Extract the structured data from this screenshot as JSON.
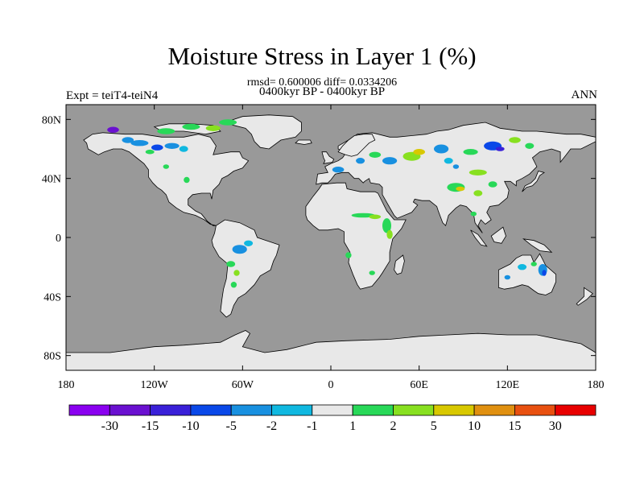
{
  "title": "Moisture Stress in Layer 1 (%)",
  "subtitle_stats": "rmsd= 0.600006 diff= 0.0334206",
  "subtitle_period": "0400kyr BP - 0400kyr BP",
  "left_label": "Expt = teiT4-teiN4",
  "right_label": "ANN",
  "lat_ticks": [
    {
      "value": 80,
      "label": "80N"
    },
    {
      "value": 40,
      "label": "40N"
    },
    {
      "value": 0,
      "label": "0"
    },
    {
      "value": -40,
      "label": "40S"
    },
    {
      "value": -80,
      "label": "80S"
    }
  ],
  "lon_ticks": [
    {
      "value": -180,
      "label": "180"
    },
    {
      "value": -120,
      "label": "120W"
    },
    {
      "value": -60,
      "label": "60W"
    },
    {
      "value": 0,
      "label": "0"
    },
    {
      "value": 60,
      "label": "60E"
    },
    {
      "value": 120,
      "label": "120E"
    },
    {
      "value": 180,
      "label": "180"
    }
  ],
  "lat_range": [
    -90,
    90
  ],
  "lon_range": [
    -180,
    180
  ],
  "colors": {
    "ocean": "#999999",
    "land_neutral": "#e8e8e8"
  },
  "colorbar": {
    "colors": [
      "#8a00f0",
      "#6a10d0",
      "#3a20d8",
      "#0a48e8",
      "#1890e0",
      "#10b8e0",
      "#e8e8e8",
      "#28d858",
      "#88e020",
      "#d8c800",
      "#e09010",
      "#e85010",
      "#e80000"
    ],
    "labels": [
      "-30",
      "-15",
      "-10",
      "-5",
      "-2",
      "-1",
      "1",
      "2",
      "5",
      "10",
      "15",
      "30"
    ]
  },
  "anomalies": [
    {
      "lon": -148,
      "lat": 73,
      "rx": 4,
      "ry": 2,
      "class": 1
    },
    {
      "lon": -138,
      "lat": 66,
      "rx": 4,
      "ry": 2,
      "class": 4
    },
    {
      "lon": -130,
      "lat": 64,
      "rx": 6,
      "ry": 2,
      "class": 4
    },
    {
      "lon": -118,
      "lat": 61,
      "rx": 4,
      "ry": 2,
      "class": 3
    },
    {
      "lon": -108,
      "lat": 62,
      "rx": 5,
      "ry": 2,
      "class": 4
    },
    {
      "lon": -100,
      "lat": 60,
      "rx": 3,
      "ry": 2,
      "class": 5
    },
    {
      "lon": -112,
      "lat": 72,
      "rx": 6,
      "ry": 2,
      "class": 7
    },
    {
      "lon": -95,
      "lat": 75,
      "rx": 6,
      "ry": 2,
      "class": 7
    },
    {
      "lon": -80,
      "lat": 74,
      "rx": 5,
      "ry": 2,
      "class": 8
    },
    {
      "lon": -70,
      "lat": 78,
      "rx": 6,
      "ry": 2,
      "class": 7
    },
    {
      "lon": -123,
      "lat": 58,
      "rx": 3,
      "ry": 1.5,
      "class": 7
    },
    {
      "lon": -112,
      "lat": 48,
      "rx": 2,
      "ry": 1.5,
      "class": 7
    },
    {
      "lon": -98,
      "lat": 39,
      "rx": 2,
      "ry": 2,
      "class": 7
    },
    {
      "lon": -62,
      "lat": -8,
      "rx": 5,
      "ry": 3,
      "class": 4
    },
    {
      "lon": -56,
      "lat": -4,
      "rx": 3,
      "ry": 2,
      "class": 5
    },
    {
      "lon": -68,
      "lat": -18,
      "rx": 3,
      "ry": 2,
      "class": 7
    },
    {
      "lon": -64,
      "lat": -24,
      "rx": 2,
      "ry": 2,
      "class": 8
    },
    {
      "lon": -66,
      "lat": -32,
      "rx": 2,
      "ry": 2,
      "class": 7
    },
    {
      "lon": 22,
      "lat": 15,
      "rx": 8,
      "ry": 1.5,
      "class": 7
    },
    {
      "lon": 30,
      "lat": 14,
      "rx": 4,
      "ry": 1.5,
      "class": 8
    },
    {
      "lon": 38,
      "lat": 8,
      "rx": 3,
      "ry": 5,
      "class": 7
    },
    {
      "lon": 40,
      "lat": 2,
      "rx": 2,
      "ry": 3,
      "class": 8
    },
    {
      "lon": 12,
      "lat": -12,
      "rx": 2,
      "ry": 2,
      "class": 7
    },
    {
      "lon": 28,
      "lat": -24,
      "rx": 2,
      "ry": 1.5,
      "class": 7
    },
    {
      "lon": 5,
      "lat": 46,
      "rx": 4,
      "ry": 2,
      "class": 4
    },
    {
      "lon": 20,
      "lat": 52,
      "rx": 3,
      "ry": 2,
      "class": 4
    },
    {
      "lon": 30,
      "lat": 56,
      "rx": 4,
      "ry": 2,
      "class": 7
    },
    {
      "lon": 40,
      "lat": 52,
      "rx": 5,
      "ry": 2.5,
      "class": 4
    },
    {
      "lon": 55,
      "lat": 55,
      "rx": 6,
      "ry": 3,
      "class": 8
    },
    {
      "lon": 60,
      "lat": 58,
      "rx": 4,
      "ry": 2,
      "class": 9
    },
    {
      "lon": 75,
      "lat": 60,
      "rx": 5,
      "ry": 3,
      "class": 4
    },
    {
      "lon": 80,
      "lat": 52,
      "rx": 3,
      "ry": 2,
      "class": 5
    },
    {
      "lon": 95,
      "lat": 58,
      "rx": 5,
      "ry": 2,
      "class": 7
    },
    {
      "lon": 110,
      "lat": 62,
      "rx": 6,
      "ry": 3,
      "class": 3
    },
    {
      "lon": 115,
      "lat": 60,
      "rx": 3,
      "ry": 1.5,
      "class": 2
    },
    {
      "lon": 125,
      "lat": 66,
      "rx": 4,
      "ry": 2,
      "class": 8
    },
    {
      "lon": 135,
      "lat": 62,
      "rx": 3,
      "ry": 2,
      "class": 7
    },
    {
      "lon": 100,
      "lat": 44,
      "rx": 6,
      "ry": 2,
      "class": 8
    },
    {
      "lon": 85,
      "lat": 34,
      "rx": 6,
      "ry": 3,
      "class": 7
    },
    {
      "lon": 88,
      "lat": 33,
      "rx": 3,
      "ry": 1.5,
      "class": 9
    },
    {
      "lon": 100,
      "lat": 30,
      "rx": 3,
      "ry": 2,
      "class": 8
    },
    {
      "lon": 110,
      "lat": 36,
      "rx": 3,
      "ry": 2,
      "class": 7
    },
    {
      "lon": 85,
      "lat": 48,
      "rx": 2,
      "ry": 1.5,
      "class": 4
    },
    {
      "lon": 97,
      "lat": 16,
      "rx": 2,
      "ry": 1.5,
      "class": 7
    },
    {
      "lon": 144,
      "lat": -22,
      "rx": 3,
      "ry": 4,
      "class": 4
    },
    {
      "lon": 145,
      "lat": -24,
      "rx": 1.5,
      "ry": 2,
      "class": 3
    },
    {
      "lon": 130,
      "lat": -20,
      "rx": 3,
      "ry": 2,
      "class": 5
    },
    {
      "lon": 138,
      "lat": -18,
      "rx": 2,
      "ry": 1.5,
      "class": 7
    },
    {
      "lon": 120,
      "lat": -27,
      "rx": 2,
      "ry": 1.5,
      "class": 4
    }
  ]
}
